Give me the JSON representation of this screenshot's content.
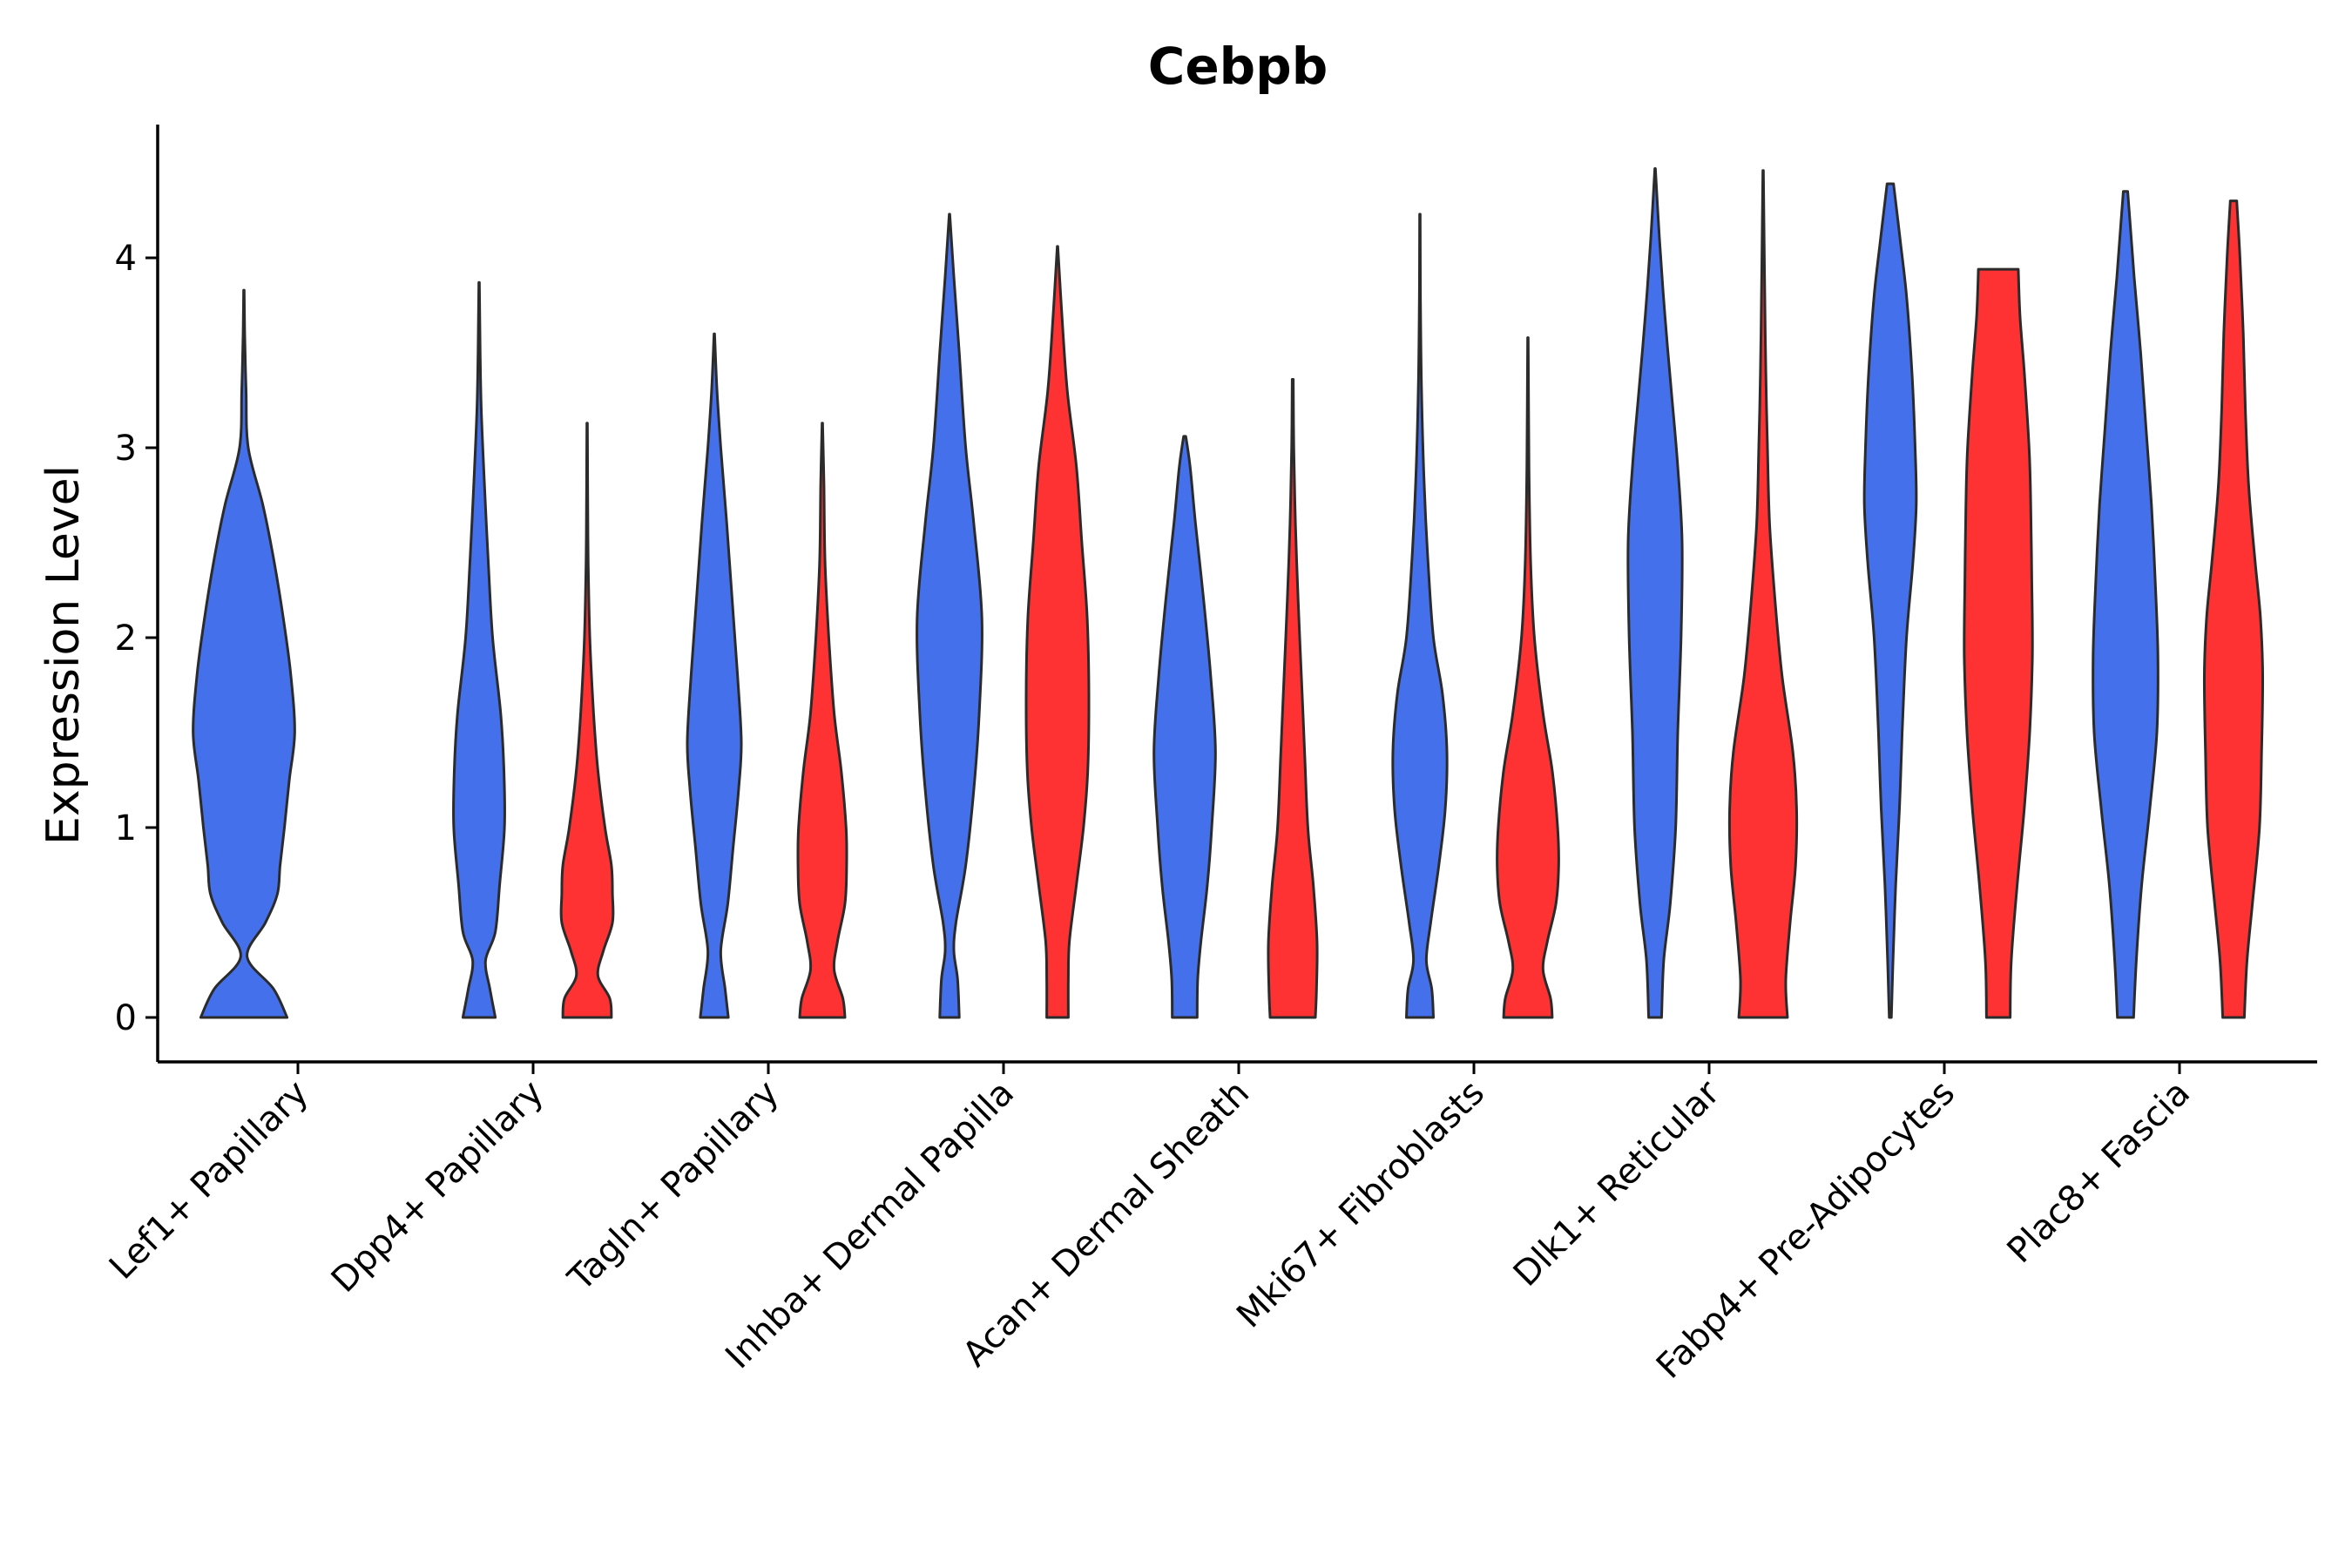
{
  "chart_data": {
    "type": "violin",
    "title": "Cebpb",
    "xlabel": "",
    "ylabel": "Expression Level",
    "ylim": [
      -0.22,
      4.72
    ],
    "yticks": [
      0,
      1,
      2,
      3,
      4
    ],
    "colors": {
      "group_a": "#4470ec",
      "group_b": "#fe3232",
      "outline": "#2b2b2b"
    },
    "categories": [
      "Lef1+ Papillary",
      "Dpp4+ Papillary",
      "Tagln+ Papillary",
      "Inhba+ Dermal Papilla",
      "Acan+ Dermal Sheath",
      "Mki67+ Fibroblasts",
      "Dlk1+ Reticular",
      "Fabp4+ Pre-Adipocytes",
      "Plac8+ Fascia"
    ],
    "violins": [
      {
        "category": 0,
        "group": "a",
        "max": 3.83,
        "profile": [
          [
            0,
            0.8
          ],
          [
            0.15,
            0.55
          ],
          [
            0.32,
            0.06
          ],
          [
            0.5,
            0.4
          ],
          [
            0.65,
            0.62
          ],
          [
            0.8,
            0.67
          ],
          [
            1.0,
            0.75
          ],
          [
            1.25,
            0.84
          ],
          [
            1.5,
            0.94
          ],
          [
            1.8,
            0.87
          ],
          [
            2.1,
            0.73
          ],
          [
            2.4,
            0.56
          ],
          [
            2.7,
            0.35
          ],
          [
            3.0,
            0.08
          ],
          [
            3.3,
            0.04
          ],
          [
            3.6,
            0.015
          ],
          [
            3.83,
            0.005
          ]
        ]
      },
      {
        "category": 1,
        "group": "a",
        "max": 3.87,
        "profile": [
          [
            0,
            0.3
          ],
          [
            0.15,
            0.2
          ],
          [
            0.3,
            0.12
          ],
          [
            0.45,
            0.3
          ],
          [
            0.7,
            0.38
          ],
          [
            1.0,
            0.47
          ],
          [
            1.3,
            0.46
          ],
          [
            1.6,
            0.4
          ],
          [
            2.0,
            0.25
          ],
          [
            2.4,
            0.17
          ],
          [
            2.8,
            0.1
          ],
          [
            3.2,
            0.04
          ],
          [
            3.5,
            0.02
          ],
          [
            3.87,
            0.005
          ]
        ]
      },
      {
        "category": 1,
        "group": "b",
        "max": 3.13,
        "profile": [
          [
            0,
            0.45
          ],
          [
            0.1,
            0.42
          ],
          [
            0.22,
            0.2
          ],
          [
            0.35,
            0.3
          ],
          [
            0.5,
            0.47
          ],
          [
            0.65,
            0.47
          ],
          [
            0.8,
            0.45
          ],
          [
            1.0,
            0.33
          ],
          [
            1.3,
            0.2
          ],
          [
            1.6,
            0.12
          ],
          [
            2.0,
            0.05
          ],
          [
            2.4,
            0.02
          ],
          [
            2.8,
            0.01
          ],
          [
            3.13,
            0.005
          ]
        ]
      },
      {
        "category": 2,
        "group": "a",
        "max": 3.6,
        "profile": [
          [
            0,
            0.26
          ],
          [
            0.15,
            0.2
          ],
          [
            0.35,
            0.12
          ],
          [
            0.6,
            0.25
          ],
          [
            0.9,
            0.35
          ],
          [
            1.2,
            0.45
          ],
          [
            1.45,
            0.5
          ],
          [
            1.8,
            0.43
          ],
          [
            2.2,
            0.33
          ],
          [
            2.6,
            0.23
          ],
          [
            3.0,
            0.12
          ],
          [
            3.3,
            0.05
          ],
          [
            3.6,
            0.005
          ]
        ]
      },
      {
        "category": 2,
        "group": "b",
        "max": 3.13,
        "profile": [
          [
            0,
            0.42
          ],
          [
            0.1,
            0.38
          ],
          [
            0.25,
            0.22
          ],
          [
            0.4,
            0.28
          ],
          [
            0.6,
            0.42
          ],
          [
            0.8,
            0.45
          ],
          [
            1.0,
            0.44
          ],
          [
            1.3,
            0.35
          ],
          [
            1.6,
            0.22
          ],
          [
            2.0,
            0.12
          ],
          [
            2.4,
            0.05
          ],
          [
            2.8,
            0.03
          ],
          [
            3.13,
            0.005
          ]
        ]
      },
      {
        "category": 3,
        "group": "a",
        "max": 4.23,
        "profile": [
          [
            0,
            0.18
          ],
          [
            0.2,
            0.15
          ],
          [
            0.35,
            0.08
          ],
          [
            0.5,
            0.12
          ],
          [
            0.8,
            0.3
          ],
          [
            1.2,
            0.45
          ],
          [
            1.6,
            0.55
          ],
          [
            2.1,
            0.6
          ],
          [
            2.6,
            0.45
          ],
          [
            3.0,
            0.3
          ],
          [
            3.5,
            0.18
          ],
          [
            3.9,
            0.08
          ],
          [
            4.23,
            0.005
          ]
        ]
      },
      {
        "category": 3,
        "group": "b",
        "max": 4.06,
        "profile": [
          [
            0,
            0.2
          ],
          [
            0.2,
            0.2
          ],
          [
            0.4,
            0.22
          ],
          [
            0.7,
            0.35
          ],
          [
            1.0,
            0.48
          ],
          [
            1.3,
            0.56
          ],
          [
            1.7,
            0.58
          ],
          [
            2.1,
            0.55
          ],
          [
            2.5,
            0.45
          ],
          [
            2.9,
            0.35
          ],
          [
            3.3,
            0.18
          ],
          [
            3.7,
            0.08
          ],
          [
            4.06,
            0.005
          ]
        ]
      },
      {
        "category": 4,
        "group": "a",
        "max": 3.06,
        "profile": [
          [
            0,
            0.23
          ],
          [
            0.2,
            0.24
          ],
          [
            0.4,
            0.3
          ],
          [
            0.7,
            0.42
          ],
          [
            1.0,
            0.5
          ],
          [
            1.4,
            0.57
          ],
          [
            1.8,
            0.48
          ],
          [
            2.2,
            0.35
          ],
          [
            2.6,
            0.2
          ],
          [
            2.9,
            0.1
          ],
          [
            3.06,
            0.02
          ]
        ]
      },
      {
        "category": 4,
        "group": "b",
        "max": 3.36,
        "profile": [
          [
            0,
            0.42
          ],
          [
            0.15,
            0.44
          ],
          [
            0.4,
            0.45
          ],
          [
            0.7,
            0.38
          ],
          [
            1.0,
            0.28
          ],
          [
            1.4,
            0.22
          ],
          [
            1.8,
            0.16
          ],
          [
            2.2,
            0.1
          ],
          [
            2.6,
            0.05
          ],
          [
            3.0,
            0.02
          ],
          [
            3.36,
            0.01
          ]
        ]
      },
      {
        "category": 5,
        "group": "a",
        "max": 4.23,
        "profile": [
          [
            0,
            0.25
          ],
          [
            0.15,
            0.22
          ],
          [
            0.3,
            0.12
          ],
          [
            0.5,
            0.2
          ],
          [
            0.8,
            0.35
          ],
          [
            1.1,
            0.47
          ],
          [
            1.4,
            0.5
          ],
          [
            1.7,
            0.42
          ],
          [
            2.0,
            0.25
          ],
          [
            2.4,
            0.15
          ],
          [
            2.8,
            0.08
          ],
          [
            3.3,
            0.03
          ],
          [
            3.8,
            0.01
          ],
          [
            4.23,
            0.005
          ]
        ]
      },
      {
        "category": 5,
        "group": "b",
        "max": 3.58,
        "profile": [
          [
            0,
            0.45
          ],
          [
            0.1,
            0.42
          ],
          [
            0.25,
            0.28
          ],
          [
            0.4,
            0.36
          ],
          [
            0.6,
            0.52
          ],
          [
            0.8,
            0.57
          ],
          [
            1.0,
            0.55
          ],
          [
            1.3,
            0.45
          ],
          [
            1.6,
            0.28
          ],
          [
            2.0,
            0.12
          ],
          [
            2.4,
            0.05
          ],
          [
            2.9,
            0.02
          ],
          [
            3.58,
            0.005
          ]
        ]
      },
      {
        "category": 6,
        "group": "a",
        "max": 4.47,
        "profile": [
          [
            0,
            0.12
          ],
          [
            0.3,
            0.16
          ],
          [
            0.6,
            0.28
          ],
          [
            1.0,
            0.38
          ],
          [
            1.5,
            0.42
          ],
          [
            2.0,
            0.48
          ],
          [
            2.5,
            0.5
          ],
          [
            2.9,
            0.42
          ],
          [
            3.3,
            0.3
          ],
          [
            3.7,
            0.18
          ],
          [
            4.1,
            0.08
          ],
          [
            4.47,
            0.005
          ]
        ]
      },
      {
        "category": 6,
        "group": "b",
        "max": 4.46,
        "profile": [
          [
            0,
            0.45
          ],
          [
            0.2,
            0.42
          ],
          [
            0.5,
            0.5
          ],
          [
            0.8,
            0.6
          ],
          [
            1.1,
            0.62
          ],
          [
            1.4,
            0.55
          ],
          [
            1.8,
            0.35
          ],
          [
            2.2,
            0.22
          ],
          [
            2.6,
            0.12
          ],
          [
            3.0,
            0.08
          ],
          [
            3.4,
            0.05
          ],
          [
            3.8,
            0.03
          ],
          [
            4.2,
            0.015
          ],
          [
            4.46,
            0.005
          ]
        ]
      },
      {
        "category": 7,
        "group": "a",
        "max": 4.39,
        "profile": [
          [
            0,
            0.02
          ],
          [
            0.3,
            0.05
          ],
          [
            0.7,
            0.1
          ],
          [
            1.1,
            0.17
          ],
          [
            1.5,
            0.22
          ],
          [
            2.0,
            0.3
          ],
          [
            2.4,
            0.42
          ],
          [
            2.7,
            0.48
          ],
          [
            3.0,
            0.46
          ],
          [
            3.4,
            0.4
          ],
          [
            3.8,
            0.3
          ],
          [
            4.1,
            0.18
          ],
          [
            4.39,
            0.06
          ]
        ]
      },
      {
        "category": 7,
        "group": "b",
        "max": 3.94,
        "profile": [
          [
            0,
            0.22
          ],
          [
            0.3,
            0.24
          ],
          [
            0.7,
            0.35
          ],
          [
            1.1,
            0.48
          ],
          [
            1.5,
            0.58
          ],
          [
            1.9,
            0.63
          ],
          [
            2.3,
            0.62
          ],
          [
            2.7,
            0.6
          ],
          [
            3.0,
            0.57
          ],
          [
            3.4,
            0.48
          ],
          [
            3.7,
            0.4
          ],
          [
            3.94,
            0.37
          ]
        ]
      },
      {
        "category": 8,
        "group": "a",
        "max": 4.35,
        "profile": [
          [
            0,
            0.15
          ],
          [
            0.3,
            0.2
          ],
          [
            0.7,
            0.3
          ],
          [
            1.1,
            0.45
          ],
          [
            1.5,
            0.58
          ],
          [
            1.9,
            0.6
          ],
          [
            2.3,
            0.55
          ],
          [
            2.7,
            0.48
          ],
          [
            3.1,
            0.38
          ],
          [
            3.5,
            0.28
          ],
          [
            3.9,
            0.16
          ],
          [
            4.2,
            0.08
          ],
          [
            4.35,
            0.04
          ]
        ]
      },
      {
        "category": 8,
        "group": "b",
        "max": 4.3,
        "profile": [
          [
            0,
            0.2
          ],
          [
            0.3,
            0.25
          ],
          [
            0.6,
            0.35
          ],
          [
            1.0,
            0.48
          ],
          [
            1.4,
            0.52
          ],
          [
            1.8,
            0.54
          ],
          [
            2.1,
            0.5
          ],
          [
            2.4,
            0.4
          ],
          [
            2.8,
            0.28
          ],
          [
            3.2,
            0.22
          ],
          [
            3.6,
            0.18
          ],
          [
            4.0,
            0.12
          ],
          [
            4.3,
            0.06
          ]
        ]
      }
    ]
  }
}
